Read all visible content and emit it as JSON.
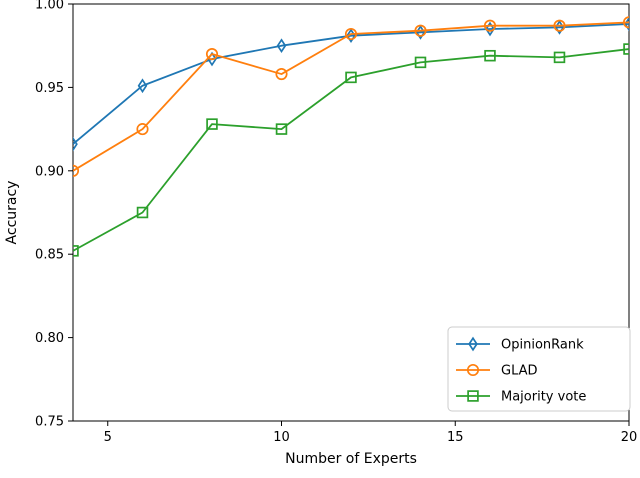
{
  "figure": {
    "background": "#ffffff",
    "spine_color": "#000000",
    "tick_color": "#000000"
  },
  "chart_data": {
    "type": "line",
    "title": "",
    "xlabel": "Number of Experts",
    "ylabel": "Accuracy",
    "x": [
      4,
      6,
      8,
      10,
      12,
      14,
      16,
      18,
      20
    ],
    "xlim": [
      4,
      20
    ],
    "ylim": [
      0.75,
      1.0
    ],
    "x_ticks": [
      5,
      10,
      15,
      20
    ],
    "y_ticks": [
      0.75,
      0.8,
      0.85,
      0.9,
      0.95,
      1.0
    ],
    "grid": false,
    "legend_position": "lower right",
    "legend_border_color": "#cccccc",
    "legend_background": "#ffffff",
    "series": [
      {
        "name": "OpinionRank",
        "color": "#1f77b4",
        "marker": "diamond",
        "values": [
          0.916,
          0.951,
          0.967,
          0.975,
          0.981,
          0.983,
          0.985,
          0.986,
          0.988
        ]
      },
      {
        "name": "GLAD",
        "color": "#ff7f0e",
        "marker": "circle",
        "values": [
          0.9,
          0.925,
          0.97,
          0.958,
          0.982,
          0.984,
          0.987,
          0.987,
          0.989
        ]
      },
      {
        "name": "Majority vote",
        "color": "#2ca02c",
        "marker": "square",
        "values": [
          0.852,
          0.875,
          0.928,
          0.925,
          0.956,
          0.965,
          0.969,
          0.968,
          0.973
        ]
      }
    ]
  }
}
